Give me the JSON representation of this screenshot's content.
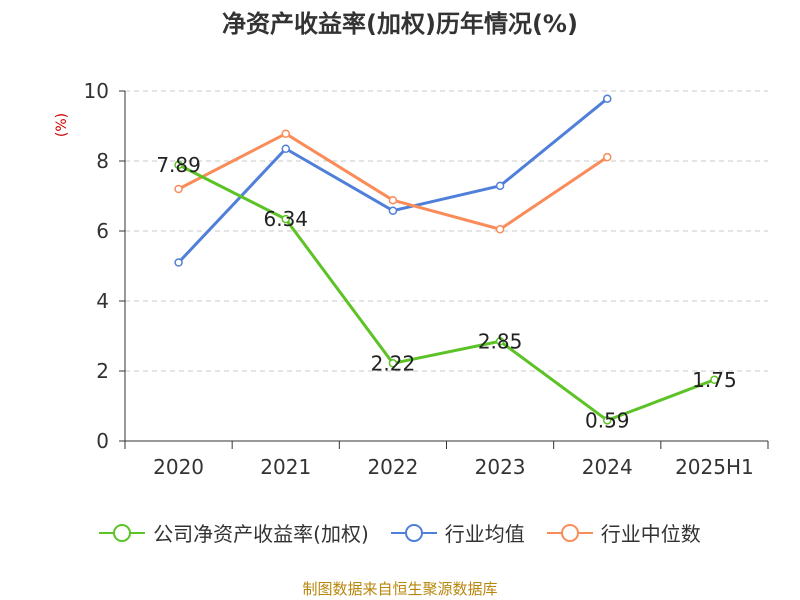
{
  "title": "净资产收益率(加权)历年情况(%)",
  "unit": "(%)",
  "source": "制图数据来自恒生聚源数据库",
  "chart_data": {
    "type": "line",
    "categories": [
      "2020",
      "2021",
      "2022",
      "2023",
      "2024",
      "2025H1"
    ],
    "ylim": [
      0,
      10
    ],
    "yticks": [
      0,
      2,
      4,
      6,
      8,
      10
    ],
    "grid": true,
    "legend_position": "bottom",
    "series": [
      {
        "name": "公司净资产收益率(加权)",
        "color": "#5cc226",
        "values": [
          7.89,
          6.34,
          2.22,
          2.85,
          0.59,
          1.75
        ],
        "labels": [
          "7.89",
          "6.34",
          "2.22",
          "2.85",
          "0.59",
          "1.75"
        ],
        "show_labels": true
      },
      {
        "name": "行业均值",
        "color": "#4f7fd9",
        "values": [
          5.1,
          8.35,
          6.58,
          7.29,
          9.78,
          null
        ],
        "show_labels": false
      },
      {
        "name": "行业中位数",
        "color": "#fa8c5a",
        "values": [
          7.2,
          8.78,
          6.88,
          6.05,
          8.11,
          null
        ],
        "show_labels": false
      }
    ]
  }
}
